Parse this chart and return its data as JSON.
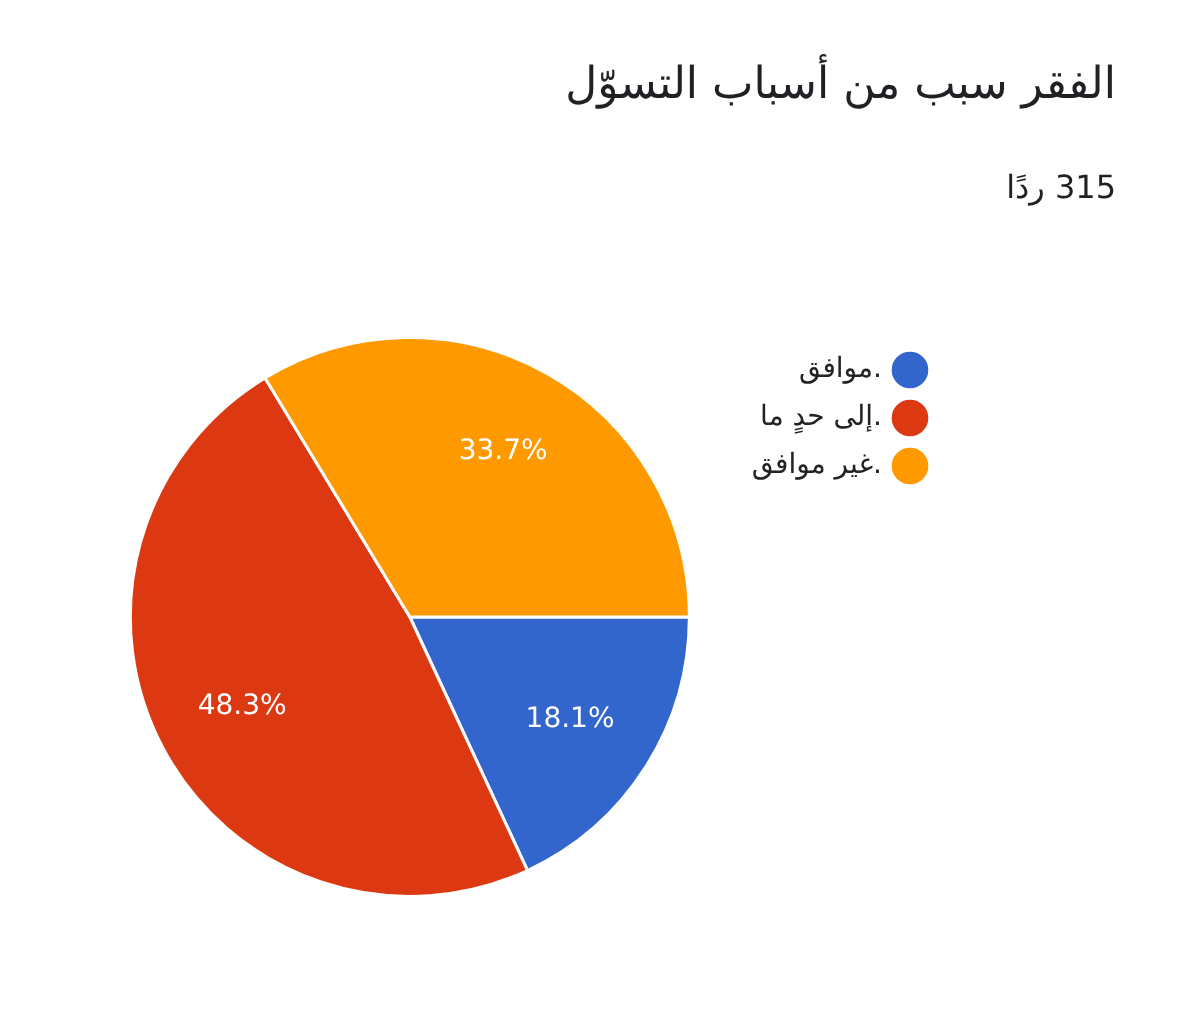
{
  "chart_data": {
    "type": "pie",
    "title": "الفقر سبب من أسباب التسوّل",
    "subtitle": "315 ردًا",
    "categories": [
      "موافق.",
      "إلى حدٍ ما.",
      "غير موافق."
    ],
    "values": [
      18.1,
      48.3,
      33.7
    ],
    "colors": [
      "#3366cc",
      "#dc3912",
      "#ff9900"
    ],
    "value_labels": [
      "18.1%",
      "48.3%",
      "33.7%"
    ],
    "legend": "right"
  }
}
